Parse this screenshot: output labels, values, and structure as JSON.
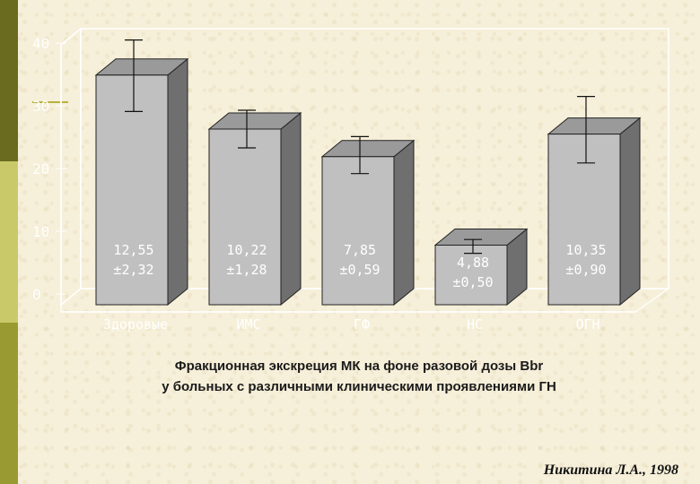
{
  "chart_data": {
    "type": "bar",
    "categories": [
      "Здоровые",
      "ИМС",
      "ГФ",
      "НС",
      "ОГН"
    ],
    "values": [
      36.6,
      28.0,
      23.6,
      9.5,
      27.2
    ],
    "error_low": [
      30.8,
      25.0,
      20.9,
      8.2,
      22.6
    ],
    "error_high": [
      42.2,
      31.0,
      26.8,
      10.4,
      33.2
    ],
    "value_labels": [
      [
        "12,55",
        "±2,32"
      ],
      [
        "10,22",
        "±1,28"
      ],
      [
        "7,85",
        "±0,59"
      ],
      [
        "4,88",
        "±0,50"
      ],
      [
        "10,35",
        "±0,90"
      ]
    ],
    "y_ticks": [
      "0",
      "10",
      "20",
      "30",
      "40"
    ],
    "ylim": [
      0,
      40
    ],
    "grid": false,
    "style": "3d-bar",
    "bar_color": "#c0c0c0"
  },
  "caption": {
    "line1": "Фракционная экскреция МК на фоне разовой дозы Bbr",
    "line2": "у больных с различными клиническими проявлениями ГН"
  },
  "author": "Никитина Л.А., 1998"
}
